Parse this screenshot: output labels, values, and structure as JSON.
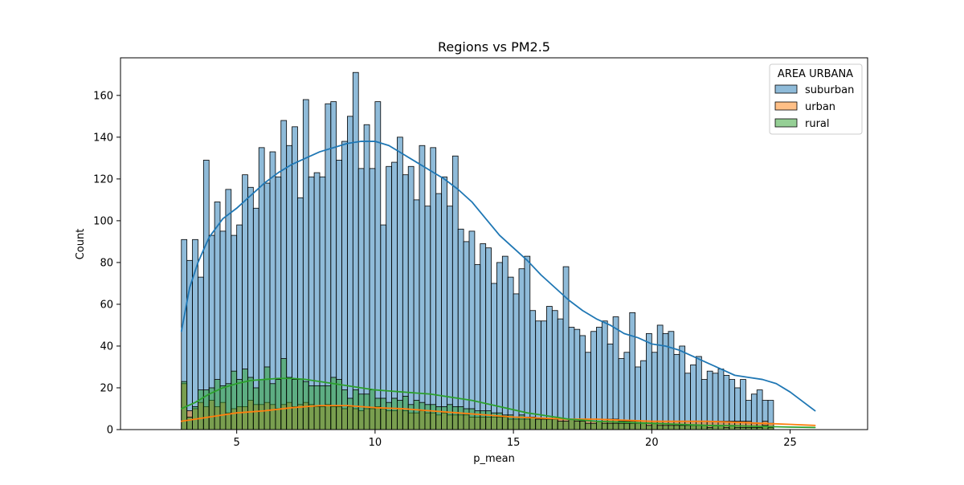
{
  "chart_data": {
    "type": "histogram",
    "title": "Regions vs PM2.5",
    "xlabel": "p_mean",
    "ylabel": "Count",
    "xlim": [
      0.8,
      27.8
    ],
    "ylim": [
      0,
      178
    ],
    "xticks": [
      5,
      10,
      15,
      20,
      25
    ],
    "yticks": [
      0,
      20,
      40,
      60,
      80,
      100,
      120,
      140,
      160
    ],
    "bin_start": 3.0,
    "bin_width": 0.2,
    "legend": {
      "title": "AREA URBANA",
      "position": "top-right",
      "entries": [
        "suburban",
        "urban",
        "rural"
      ]
    },
    "colors": {
      "suburban_fill": "#1f77b4",
      "urban_fill": "#ff7f0e",
      "rural_fill": "#2ca02c",
      "edge": "#000000"
    },
    "series": [
      {
        "name": "suburban",
        "color": "#1f77b4",
        "values": [
          91,
          81,
          91,
          73,
          129,
          93,
          109,
          95,
          115,
          93,
          98,
          122,
          116,
          106,
          135,
          118,
          133,
          121,
          148,
          136,
          145,
          111,
          158,
          121,
          123,
          121,
          156,
          157,
          129,
          138,
          150,
          171,
          125,
          146,
          125,
          157,
          98,
          126,
          128,
          140,
          122,
          126,
          110,
          136,
          107,
          135,
          113,
          121,
          107,
          131,
          96,
          90,
          95,
          79,
          89,
          87,
          70,
          80,
          83,
          73,
          65,
          77,
          83,
          57,
          52,
          52,
          59,
          57,
          53,
          78,
          49,
          48,
          45,
          37,
          47,
          49,
          52,
          41,
          54,
          34,
          37,
          56,
          30,
          33,
          46,
          37,
          50,
          46,
          47,
          36,
          40,
          27,
          31,
          35,
          24,
          28,
          27,
          29,
          26,
          24,
          20,
          24,
          14,
          17,
          19,
          14,
          14
        ],
        "kde": [
          [
            3.0,
            47
          ],
          [
            3.3,
            68
          ],
          [
            3.6,
            80
          ],
          [
            4.0,
            92
          ],
          [
            4.5,
            101
          ],
          [
            5.0,
            106
          ],
          [
            5.5,
            112
          ],
          [
            6.0,
            118
          ],
          [
            6.5,
            123
          ],
          [
            7.0,
            127
          ],
          [
            7.5,
            130
          ],
          [
            8.0,
            133
          ],
          [
            8.5,
            135
          ],
          [
            9.0,
            137
          ],
          [
            9.5,
            138
          ],
          [
            10.0,
            138
          ],
          [
            10.5,
            136
          ],
          [
            11.0,
            132
          ],
          [
            11.5,
            128
          ],
          [
            12.0,
            124
          ],
          [
            12.5,
            120
          ],
          [
            13.0,
            115
          ],
          [
            13.5,
            109
          ],
          [
            14.0,
            101
          ],
          [
            14.5,
            93
          ],
          [
            15.0,
            87
          ],
          [
            15.5,
            81
          ],
          [
            16.0,
            74
          ],
          [
            16.5,
            68
          ],
          [
            17.0,
            62
          ],
          [
            17.5,
            57
          ],
          [
            18.0,
            53
          ],
          [
            18.5,
            50
          ],
          [
            19.0,
            46
          ],
          [
            19.5,
            44
          ],
          [
            20.0,
            41
          ],
          [
            20.5,
            40
          ],
          [
            21.0,
            38
          ],
          [
            21.5,
            35
          ],
          [
            22.0,
            32
          ],
          [
            22.5,
            29
          ],
          [
            23.0,
            26
          ],
          [
            23.5,
            25
          ],
          [
            24.0,
            24
          ],
          [
            24.5,
            22
          ],
          [
            25.0,
            18
          ],
          [
            25.5,
            13
          ],
          [
            25.9,
            9
          ]
        ]
      },
      {
        "name": "urban",
        "color": "#ff7f0e",
        "values": [
          22,
          9,
          10,
          13,
          11,
          14,
          11,
          13,
          8,
          10,
          11,
          11,
          14,
          12,
          12,
          13,
          12,
          10,
          12,
          13,
          11,
          12,
          13,
          12,
          11,
          11,
          12,
          11,
          11,
          10,
          11,
          10,
          9,
          10,
          10,
          11,
          10,
          9,
          9,
          10,
          9,
          8,
          8,
          9,
          8,
          8,
          7,
          8,
          7,
          7,
          7,
          7,
          6,
          6,
          6,
          6,
          6,
          6,
          6,
          5,
          5,
          5,
          5,
          6,
          5,
          5,
          5,
          5,
          5,
          5,
          5,
          5,
          5,
          5,
          4,
          4,
          5,
          5,
          5,
          4,
          4,
          4,
          4,
          4,
          4,
          4,
          4,
          4,
          4,
          4,
          4,
          4,
          4,
          4,
          4,
          4,
          4,
          4,
          4,
          4,
          4,
          4,
          4,
          3,
          3,
          4,
          3
        ],
        "kde": [
          [
            3.0,
            4
          ],
          [
            4.0,
            6
          ],
          [
            5.0,
            8
          ],
          [
            6.0,
            9
          ],
          [
            7.0,
            10.5
          ],
          [
            8.0,
            11.5
          ],
          [
            9.0,
            11.5
          ],
          [
            10.0,
            10.5
          ],
          [
            11.0,
            10
          ],
          [
            12.0,
            9
          ],
          [
            13.0,
            8
          ],
          [
            14.0,
            7
          ],
          [
            15.0,
            6
          ],
          [
            16.0,
            5.5
          ],
          [
            17.0,
            5
          ],
          [
            18.0,
            5
          ],
          [
            19.0,
            4.5
          ],
          [
            20.0,
            4
          ],
          [
            21.0,
            4
          ],
          [
            22.0,
            4
          ],
          [
            23.0,
            3.5
          ],
          [
            24.0,
            3
          ],
          [
            25.0,
            2.5
          ],
          [
            25.9,
            2
          ]
        ]
      },
      {
        "name": "rural",
        "color": "#2ca02c",
        "values": [
          23,
          6,
          11,
          19,
          19,
          20,
          24,
          21,
          22,
          28,
          24,
          29,
          25,
          20,
          24,
          30,
          22,
          24,
          34,
          25,
          24,
          24,
          23,
          21,
          21,
          21,
          21,
          25,
          24,
          19,
          15,
          19,
          17,
          17,
          19,
          15,
          15,
          13,
          15,
          14,
          16,
          12,
          14,
          13,
          12,
          12,
          11,
          11,
          12,
          11,
          11,
          10,
          10,
          9,
          9,
          9,
          8,
          8,
          7,
          7,
          6,
          7,
          6,
          6,
          5,
          5,
          5,
          5,
          4,
          4,
          5,
          4,
          4,
          3,
          3,
          4,
          3,
          3,
          3,
          3,
          3,
          3,
          3,
          3,
          2,
          3,
          2,
          2,
          2,
          2,
          2,
          2,
          2,
          2,
          2,
          1,
          2,
          2,
          1,
          2,
          1,
          1,
          1,
          1,
          1,
          2,
          1
        ],
        "kde": [
          [
            3.0,
            10
          ],
          [
            3.5,
            13
          ],
          [
            4.0,
            17
          ],
          [
            4.5,
            20
          ],
          [
            5.0,
            22
          ],
          [
            5.5,
            23.5
          ],
          [
            6.0,
            24
          ],
          [
            6.5,
            24.5
          ],
          [
            7.0,
            24.5
          ],
          [
            7.5,
            24
          ],
          [
            8.0,
            23
          ],
          [
            8.5,
            22
          ],
          [
            9.0,
            21
          ],
          [
            9.5,
            20
          ],
          [
            10.0,
            19
          ],
          [
            10.5,
            18.5
          ],
          [
            11.0,
            18
          ],
          [
            11.5,
            17.5
          ],
          [
            12.0,
            17
          ],
          [
            12.5,
            16
          ],
          [
            13.0,
            15
          ],
          [
            13.5,
            14
          ],
          [
            14.0,
            12.5
          ],
          [
            14.5,
            11
          ],
          [
            15.0,
            9.5
          ],
          [
            15.5,
            8
          ],
          [
            16.0,
            7
          ],
          [
            16.5,
            6
          ],
          [
            17.0,
            5
          ],
          [
            17.5,
            4.5
          ],
          [
            18.0,
            4
          ],
          [
            19.0,
            3.5
          ],
          [
            20.0,
            3
          ],
          [
            21.0,
            2.5
          ],
          [
            22.0,
            2
          ],
          [
            23.0,
            1.8
          ],
          [
            24.0,
            1.5
          ],
          [
            25.0,
            1.2
          ],
          [
            25.9,
            1
          ]
        ]
      }
    ]
  }
}
